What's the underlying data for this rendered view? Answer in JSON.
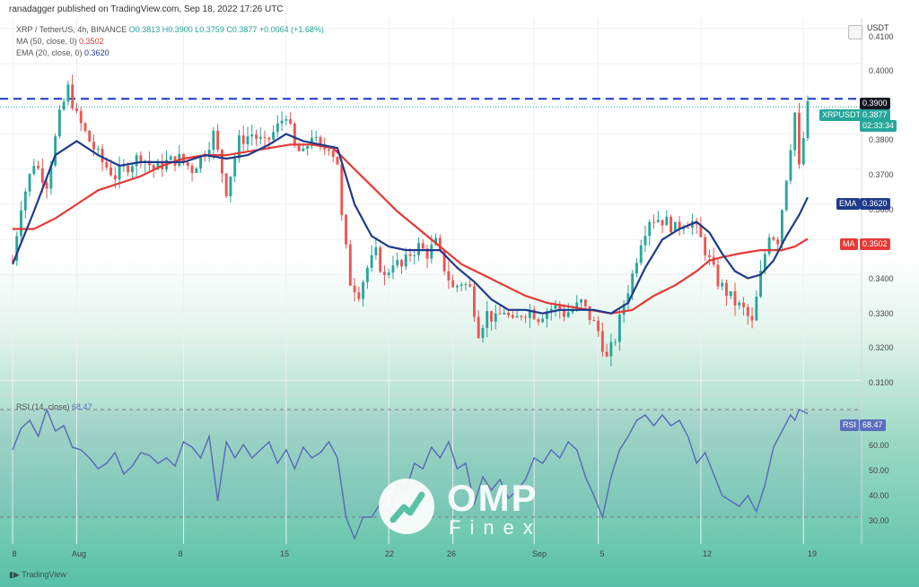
{
  "header": {
    "published_line": "ranadagger published on TradingView.com, Sep 18, 2022 17:26 UTC"
  },
  "legend": {
    "symbol_line_prefix": "XRP / TetherUS, 4h, BINANCE",
    "ohlc": "O0.3813 H0.3900 L0.3759 C0.3877 +0.0064 (+1.68%)",
    "ma_label": "MA (50, close, 0)",
    "ma_value": "0.3502",
    "ema_label": "EMA (20, close, 0)",
    "ema_value": "0.3620",
    "rsi_label": "RSI (14, close)",
    "rsi_value": "68.47"
  },
  "axis": {
    "currency": "USDT",
    "price_ticks": [
      "0.4100",
      "0.4000",
      "0.3800",
      "0.3700",
      "0.3600",
      "0.3400",
      "0.3300",
      "0.3200",
      "0.3100"
    ],
    "rsi_ticks": [
      "60.00",
      "50.00",
      "40.00",
      "30.00"
    ],
    "time_ticks": [
      "8",
      "Aug",
      "8",
      "15",
      "22",
      "26",
      "Sep",
      "5",
      "12",
      "19"
    ]
  },
  "tags": {
    "resistance": "0.3900",
    "symbol_tag": "XRPUSDT",
    "last_price": "0.3877",
    "countdown": "02:33:34",
    "ema_tag": "EMA",
    "ema_tag_value": "0.3620",
    "ma_tag": "MA",
    "ma_tag_value": "0.3502",
    "rsi_tag": "RSI",
    "rsi_tag_value": "68.47"
  },
  "colors": {
    "up": "#26a69a",
    "down": "#ef5350",
    "ema": "#1e3a8a",
    "ma": "#e53935",
    "rsi": "#5b6dbb",
    "resistance": "#1a35c9"
  },
  "footer": {
    "brand": "TradingView",
    "watermark_main": "OMP",
    "watermark_sub": "Finex"
  },
  "chart_data": {
    "type": "candlestick",
    "title": "XRP / TetherUS, 4h, BINANCE",
    "y_unit": "USDT",
    "ylim": [
      0.306,
      0.413
    ],
    "resistance_level": 0.39,
    "last_close": 0.3877,
    "price_path": [
      [
        0,
        0.344
      ],
      [
        2,
        0.36
      ],
      [
        5,
        0.372
      ],
      [
        8,
        0.366
      ],
      [
        11,
        0.385
      ],
      [
        13,
        0.393
      ],
      [
        15,
        0.385
      ],
      [
        18,
        0.378
      ],
      [
        21,
        0.372
      ],
      [
        24,
        0.368
      ],
      [
        27,
        0.371
      ],
      [
        30,
        0.374
      ],
      [
        33,
        0.37
      ],
      [
        36,
        0.372
      ],
      [
        39,
        0.373
      ],
      [
        42,
        0.37
      ],
      [
        45,
        0.375
      ],
      [
        47,
        0.38
      ],
      [
        50,
        0.364
      ],
      [
        53,
        0.378
      ],
      [
        56,
        0.38
      ],
      [
        59,
        0.377
      ],
      [
        62,
        0.382
      ],
      [
        64,
        0.386
      ],
      [
        66,
        0.376
      ],
      [
        68,
        0.374
      ],
      [
        70,
        0.38
      ],
      [
        72,
        0.375
      ],
      [
        74,
        0.377
      ],
      [
        76,
        0.372
      ],
      [
        77,
        0.356
      ],
      [
        79,
        0.338
      ],
      [
        81,
        0.335
      ],
      [
        83,
        0.342
      ],
      [
        85,
        0.346
      ],
      [
        87,
        0.339
      ],
      [
        89,
        0.344
      ],
      [
        91,
        0.342
      ],
      [
        93,
        0.346
      ],
      [
        95,
        0.348
      ],
      [
        97,
        0.346
      ],
      [
        99,
        0.349
      ],
      [
        101,
        0.342
      ],
      [
        103,
        0.336
      ],
      [
        105,
        0.338
      ],
      [
        107,
        0.336
      ],
      [
        109,
        0.324
      ],
      [
        111,
        0.329
      ],
      [
        113,
        0.327
      ],
      [
        115,
        0.33
      ],
      [
        117,
        0.326
      ],
      [
        119,
        0.329
      ],
      [
        121,
        0.33
      ],
      [
        123,
        0.328
      ],
      [
        125,
        0.33
      ],
      [
        127,
        0.331
      ],
      [
        129,
        0.329
      ],
      [
        131,
        0.33
      ],
      [
        133,
        0.332
      ],
      [
        135,
        0.328
      ],
      [
        137,
        0.324
      ],
      [
        139,
        0.316
      ],
      [
        141,
        0.322
      ],
      [
        143,
        0.332
      ],
      [
        145,
        0.34
      ],
      [
        147,
        0.35
      ],
      [
        149,
        0.356
      ],
      [
        151,
        0.356
      ],
      [
        153,
        0.355
      ],
      [
        155,
        0.353
      ],
      [
        157,
        0.355
      ],
      [
        159,
        0.355
      ],
      [
        161,
        0.35
      ],
      [
        163,
        0.344
      ],
      [
        165,
        0.338
      ],
      [
        167,
        0.335
      ],
      [
        169,
        0.332
      ],
      [
        171,
        0.33
      ],
      [
        173,
        0.326
      ],
      [
        175,
        0.34
      ],
      [
        177,
        0.352
      ],
      [
        179,
        0.35
      ],
      [
        181,
        0.368
      ],
      [
        183,
        0.386
      ],
      [
        184,
        0.37
      ],
      [
        186,
        0.3877
      ]
    ],
    "ema20": [
      [
        0,
        0.343
      ],
      [
        5,
        0.358
      ],
      [
        10,
        0.374
      ],
      [
        15,
        0.378
      ],
      [
        20,
        0.374
      ],
      [
        25,
        0.371
      ],
      [
        30,
        0.372
      ],
      [
        35,
        0.372
      ],
      [
        40,
        0.372
      ],
      [
        45,
        0.374
      ],
      [
        50,
        0.373
      ],
      [
        55,
        0.374
      ],
      [
        60,
        0.377
      ],
      [
        64,
        0.38
      ],
      [
        68,
        0.378
      ],
      [
        72,
        0.377
      ],
      [
        76,
        0.376
      ],
      [
        80,
        0.36
      ],
      [
        84,
        0.351
      ],
      [
        88,
        0.348
      ],
      [
        92,
        0.347
      ],
      [
        96,
        0.347
      ],
      [
        100,
        0.347
      ],
      [
        104,
        0.342
      ],
      [
        108,
        0.338
      ],
      [
        112,
        0.333
      ],
      [
        116,
        0.33
      ],
      [
        120,
        0.33
      ],
      [
        124,
        0.329
      ],
      [
        128,
        0.33
      ],
      [
        132,
        0.33
      ],
      [
        136,
        0.33
      ],
      [
        140,
        0.329
      ],
      [
        144,
        0.332
      ],
      [
        148,
        0.342
      ],
      [
        152,
        0.35
      ],
      [
        156,
        0.353
      ],
      [
        160,
        0.355
      ],
      [
        163,
        0.352
      ],
      [
        166,
        0.346
      ],
      [
        169,
        0.341
      ],
      [
        172,
        0.339
      ],
      [
        175,
        0.34
      ],
      [
        178,
        0.344
      ],
      [
        181,
        0.351
      ],
      [
        184,
        0.357
      ],
      [
        186,
        0.362
      ]
    ],
    "ma50": [
      [
        0,
        0.353
      ],
      [
        5,
        0.353
      ],
      [
        10,
        0.356
      ],
      [
        15,
        0.36
      ],
      [
        20,
        0.364
      ],
      [
        25,
        0.366
      ],
      [
        30,
        0.368
      ],
      [
        35,
        0.371
      ],
      [
        40,
        0.373
      ],
      [
        45,
        0.374
      ],
      [
        50,
        0.374
      ],
      [
        55,
        0.375
      ],
      [
        60,
        0.376
      ],
      [
        65,
        0.377
      ],
      [
        70,
        0.377
      ],
      [
        75,
        0.376
      ],
      [
        80,
        0.37
      ],
      [
        85,
        0.364
      ],
      [
        90,
        0.358
      ],
      [
        95,
        0.353
      ],
      [
        100,
        0.348
      ],
      [
        105,
        0.343
      ],
      [
        110,
        0.34
      ],
      [
        115,
        0.337
      ],
      [
        120,
        0.334
      ],
      [
        125,
        0.332
      ],
      [
        130,
        0.331
      ],
      [
        135,
        0.33
      ],
      [
        140,
        0.329
      ],
      [
        145,
        0.33
      ],
      [
        150,
        0.334
      ],
      [
        155,
        0.337
      ],
      [
        160,
        0.341
      ],
      [
        163,
        0.344
      ],
      [
        166,
        0.345
      ],
      [
        170,
        0.346
      ],
      [
        175,
        0.347
      ],
      [
        180,
        0.347
      ],
      [
        183,
        0.348
      ],
      [
        186,
        0.3502
      ]
    ],
    "rsi": {
      "ylim": [
        20,
        75
      ],
      "value": 68.47,
      "path": [
        [
          0,
          55
        ],
        [
          2,
          63
        ],
        [
          4,
          66
        ],
        [
          6,
          60
        ],
        [
          8,
          70
        ],
        [
          10,
          62
        ],
        [
          12,
          64
        ],
        [
          14,
          56
        ],
        [
          16,
          55
        ],
        [
          18,
          52
        ],
        [
          20,
          48
        ],
        [
          22,
          50
        ],
        [
          24,
          54
        ],
        [
          26,
          46
        ],
        [
          28,
          49
        ],
        [
          30,
          54
        ],
        [
          32,
          53
        ],
        [
          34,
          50
        ],
        [
          36,
          52
        ],
        [
          38,
          49
        ],
        [
          40,
          58
        ],
        [
          42,
          56
        ],
        [
          44,
          52
        ],
        [
          46,
          60
        ],
        [
          48,
          36
        ],
        [
          50,
          58
        ],
        [
          52,
          52
        ],
        [
          54,
          57
        ],
        [
          56,
          52
        ],
        [
          58,
          55
        ],
        [
          60,
          58
        ],
        [
          62,
          50
        ],
        [
          64,
          55
        ],
        [
          66,
          48
        ],
        [
          68,
          56
        ],
        [
          70,
          52
        ],
        [
          72,
          54
        ],
        [
          74,
          58
        ],
        [
          76,
          52
        ],
        [
          78,
          30
        ],
        [
          80,
          22
        ],
        [
          82,
          30
        ],
        [
          84,
          30
        ],
        [
          86,
          35
        ],
        [
          88,
          32
        ],
        [
          90,
          42
        ],
        [
          92,
          40
        ],
        [
          94,
          50
        ],
        [
          96,
          48
        ],
        [
          98,
          56
        ],
        [
          100,
          52
        ],
        [
          102,
          58
        ],
        [
          104,
          48
        ],
        [
          106,
          50
        ],
        [
          108,
          35
        ],
        [
          110,
          45
        ],
        [
          112,
          40
        ],
        [
          114,
          44
        ],
        [
          116,
          37
        ],
        [
          118,
          40
        ],
        [
          120,
          44
        ],
        [
          122,
          52
        ],
        [
          124,
          50
        ],
        [
          126,
          55
        ],
        [
          128,
          52
        ],
        [
          130,
          58
        ],
        [
          132,
          55
        ],
        [
          134,
          45
        ],
        [
          136,
          38
        ],
        [
          138,
          30
        ],
        [
          140,
          45
        ],
        [
          142,
          55
        ],
        [
          144,
          60
        ],
        [
          146,
          66
        ],
        [
          148,
          68
        ],
        [
          150,
          64
        ],
        [
          152,
          68
        ],
        [
          154,
          64
        ],
        [
          156,
          66
        ],
        [
          158,
          60
        ],
        [
          160,
          50
        ],
        [
          162,
          54
        ],
        [
          164,
          46
        ],
        [
          166,
          38
        ],
        [
          168,
          36
        ],
        [
          170,
          34
        ],
        [
          172,
          38
        ],
        [
          174,
          32
        ],
        [
          176,
          42
        ],
        [
          178,
          56
        ],
        [
          180,
          62
        ],
        [
          182,
          68
        ],
        [
          183,
          66
        ],
        [
          184,
          70
        ],
        [
          186,
          68.47
        ]
      ],
      "reference_levels": [
        30,
        70
      ]
    },
    "x_count": 187,
    "x_labels": [
      {
        "x": 0,
        "label": "8"
      },
      {
        "x": 15,
        "label": "Aug"
      },
      {
        "x": 40,
        "label": "8"
      },
      {
        "x": 64,
        "label": "15"
      },
      {
        "x": 88,
        "label": "22"
      },
      {
        "x": 103,
        "label": "26"
      },
      {
        "x": 122,
        "label": "Sep"
      },
      {
        "x": 137,
        "label": "5"
      },
      {
        "x": 161,
        "label": "12"
      },
      {
        "x": 185,
        "label": "19"
      }
    ]
  }
}
